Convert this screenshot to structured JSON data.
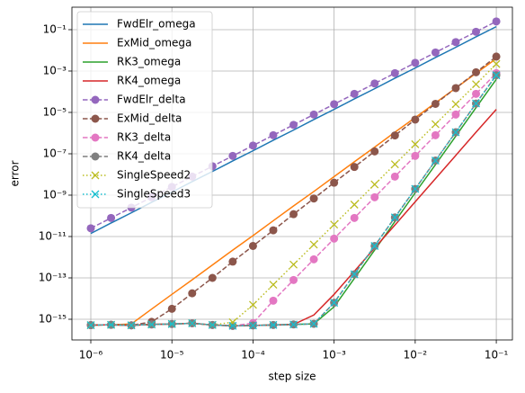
{
  "chart_data": {
    "type": "line",
    "xlabel": "step size",
    "ylabel": "error",
    "xscale": "log",
    "yscale": "log",
    "grid": true,
    "legend": "upper left",
    "xlim": [
      5.85e-07,
      0.158
    ],
    "ylim": [
      1e-16,
      1.22
    ],
    "xticks": [
      {
        "value": 1e-06,
        "label": "10⁻⁶"
      },
      {
        "value": 1e-05,
        "label": "10⁻⁵"
      },
      {
        "value": 0.0001,
        "label": "10⁻⁴"
      },
      {
        "value": 0.001,
        "label": "10⁻³"
      },
      {
        "value": 0.01,
        "label": "10⁻²"
      },
      {
        "value": 0.1,
        "label": "10⁻¹"
      }
    ],
    "yticks": [
      {
        "value": 1e-15,
        "label": "10⁻¹⁵"
      },
      {
        "value": 1e-13,
        "label": "10⁻¹³"
      },
      {
        "value": 1e-11,
        "label": "10⁻¹¹"
      },
      {
        "value": 1e-09,
        "label": "10⁻⁹"
      },
      {
        "value": 1e-07,
        "label": "10⁻⁷"
      },
      {
        "value": 1e-05,
        "label": "10⁻⁵"
      },
      {
        "value": 0.001,
        "label": "10⁻³"
      },
      {
        "value": 0.1,
        "label": "10⁻¹"
      }
    ],
    "x": [
      1e-06,
      1.778e-06,
      3.162e-06,
      5.623e-06,
      1e-05,
      1.778e-05,
      3.162e-05,
      5.623e-05,
      0.0001,
      0.0001778,
      0.0003162,
      0.0005623,
      0.001,
      0.001778,
      0.003162,
      0.005623,
      0.01,
      0.01778,
      0.03162,
      0.05623,
      0.1
    ],
    "series": [
      {
        "name": "FwdElr_omega",
        "color": "#1f77b4",
        "linestyle": "solid",
        "marker": null,
        "values": [
          1.4e-11,
          4.5e-11,
          1.4e-10,
          4.5e-10,
          1.4e-09,
          4.5e-09,
          1.4e-08,
          4.5e-08,
          1.4e-07,
          4.5e-07,
          1.4e-06,
          4.5e-06,
          1.4e-05,
          4.5e-05,
          0.00014,
          0.00045,
          0.0014,
          0.0045,
          0.014,
          0.045,
          0.14
        ]
      },
      {
        "name": "ExMid_omega",
        "color": "#ff7f0e",
        "linestyle": "solid",
        "marker": null,
        "values": [
          5.2e-16,
          5.4e-16,
          5.9e-16,
          3.1e-15,
          1.6e-14,
          8.1e-14,
          4.2e-13,
          2.2e-12,
          1.1e-11,
          5.8e-11,
          3e-10,
          1.5e-09,
          7.9e-09,
          4.1e-08,
          2.1e-07,
          1.1e-06,
          5.6e-06,
          2.9e-05,
          0.00015,
          0.00078,
          0.004
        ]
      },
      {
        "name": "RK3_omega",
        "color": "#2ca02c",
        "linestyle": "solid",
        "marker": null,
        "values": [
          5.2e-16,
          5.4e-16,
          5.1e-16,
          5.6e-16,
          5.9e-16,
          6.4e-16,
          5.3e-16,
          4.8e-16,
          5e-16,
          5.3e-16,
          5.6e-16,
          6e-16,
          4e-15,
          9.4e-14,
          2.2e-12,
          5.3e-11,
          1.3e-09,
          3e-08,
          7.1e-07,
          1.7e-05,
          0.0004
        ]
      },
      {
        "name": "RK4_omega",
        "color": "#d62728",
        "linestyle": "solid",
        "marker": null,
        "values": [
          5.2e-16,
          5.4e-16,
          5.1e-16,
          5.6e-16,
          5.9e-16,
          6.4e-16,
          5.3e-16,
          4.8e-16,
          5e-16,
          5.3e-16,
          5.6e-16,
          1.6e-15,
          1.6e-14,
          2.1e-13,
          2.8e-12,
          3.6e-11,
          4.8e-10,
          6.3e-09,
          8.3e-08,
          1.1e-06,
          1.4e-05
        ]
      },
      {
        "name": "FwdElr_delta",
        "color": "#9467bd",
        "linestyle": "dashed",
        "marker": "o",
        "values": [
          2.5e-11,
          7.9e-11,
          2.5e-10,
          7.9e-10,
          2.5e-09,
          7.9e-09,
          2.5e-08,
          7.9e-08,
          2.5e-07,
          7.9e-07,
          2.5e-06,
          7.9e-06,
          2.5e-05,
          7.9e-05,
          0.00025,
          0.00079,
          0.0025,
          0.0079,
          0.025,
          0.079,
          0.25
        ]
      },
      {
        "name": "ExMid_delta",
        "color": "#8c564b",
        "linestyle": "dashed",
        "marker": "o",
        "values": [
          5.2e-16,
          5.4e-16,
          5.1e-16,
          7.5e-16,
          3.2e-15,
          1.8e-14,
          1e-13,
          6.1e-13,
          3.5e-12,
          2e-11,
          1.2e-10,
          6.9e-10,
          4e-09,
          2.3e-08,
          1.3e-07,
          7.7e-07,
          4.5e-06,
          2.6e-05,
          0.00015,
          0.00087,
          0.005
        ]
      },
      {
        "name": "RK3_delta",
        "color": "#e377c2",
        "linestyle": "dashed",
        "marker": "o",
        "values": [
          5.2e-16,
          5.4e-16,
          5.1e-16,
          5.6e-16,
          5.9e-16,
          6.4e-16,
          5.3e-16,
          4.8e-16,
          6.5e-16,
          7.9e-15,
          7.9e-14,
          7.9e-13,
          7.9e-12,
          7.9e-11,
          7.9e-10,
          7.9e-09,
          7.9e-08,
          7.9e-07,
          7.9e-06,
          7.9e-05,
          0.00079
        ]
      },
      {
        "name": "RK4_delta",
        "color": "#7f7f7f",
        "linestyle": "dashed",
        "marker": "o",
        "values": [
          5.2e-16,
          5.4e-16,
          5.1e-16,
          5.6e-16,
          5.9e-16,
          6.4e-16,
          5.3e-16,
          4.8e-16,
          5e-16,
          5.3e-16,
          5.6e-16,
          6e-16,
          6.3e-15,
          1.5e-13,
          3.5e-12,
          8.4e-11,
          2e-09,
          4.7e-08,
          1.1e-06,
          2.7e-05,
          0.00063
        ]
      },
      {
        "name": "SingleSpeed2",
        "color": "#bcbd22",
        "linestyle": "dotted",
        "marker": "x",
        "values": [
          5.2e-16,
          5.4e-16,
          5.1e-16,
          5.6e-16,
          5.9e-16,
          6.4e-16,
          5.3e-16,
          7.2e-16,
          5e-15,
          4.7e-14,
          4.4e-13,
          4.1e-12,
          3.8e-11,
          3.5e-10,
          3.3e-09,
          3.1e-08,
          2.9e-07,
          2.7e-06,
          2.5e-05,
          0.00023,
          0.0022
        ]
      },
      {
        "name": "SingleSpeed3",
        "color": "#17becf",
        "linestyle": "dotted",
        "marker": "x",
        "values": [
          5.2e-16,
          5.4e-16,
          5.1e-16,
          5.6e-16,
          5.9e-16,
          6.4e-16,
          5.3e-16,
          4.8e-16,
          5e-16,
          5.3e-16,
          5.6e-16,
          6e-16,
          6.3e-15,
          1.5e-13,
          3.5e-12,
          8.4e-11,
          2e-09,
          4.7e-08,
          1.1e-06,
          2.7e-05,
          0.00063
        ]
      }
    ]
  }
}
